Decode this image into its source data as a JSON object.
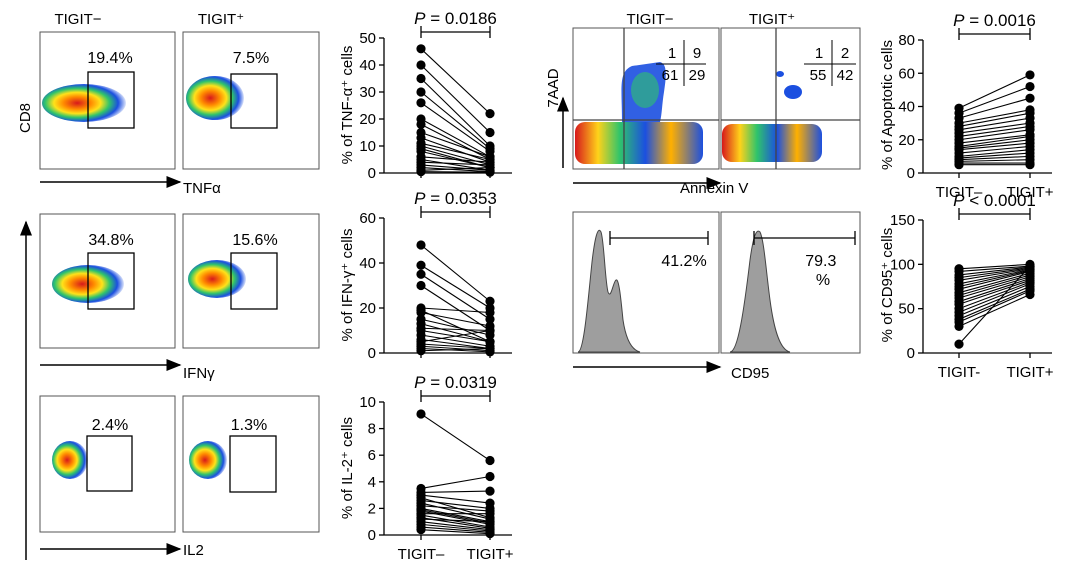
{
  "column_headers": {
    "flow_left": [
      "TIGIT−",
      "TIGIT⁺"
    ],
    "flow_right": [
      "TIGIT−",
      "TIGIT⁺"
    ]
  },
  "flow_axes": {
    "cd8_label": "CD8",
    "tnf_label": "TNFα",
    "ifn_label": "IFNγ",
    "il2_label": "IL2",
    "aad_label": "7AAD",
    "annexin_label": "Annexin V",
    "cd95_label": "CD95"
  },
  "gates": {
    "tnf": [
      "19.4%",
      "7.5%"
    ],
    "ifn": [
      "34.8%",
      "15.6%"
    ],
    "il2": [
      "2.4%",
      "1.3%"
    ],
    "cd95": [
      "41.2%",
      "79.3\n%"
    ],
    "quadrants": [
      [
        "1",
        "9",
        "61",
        "29"
      ],
      [
        "1",
        "2",
        "55",
        "42"
      ]
    ]
  },
  "colors": {
    "density_high": "#d7191c",
    "density_mid": "#ffd21a",
    "density_low": "#1b4fe0",
    "histogram_fill": "#9e9e9e"
  },
  "chart_data": [
    {
      "type": "scatter",
      "subtype": "paired",
      "stat_label": "P = 0.0186",
      "ylabel": "% of TNF-α⁺ cells",
      "ylim": [
        0,
        50
      ],
      "yticks": [
        "0",
        "10",
        "20",
        "30",
        "40",
        "50"
      ],
      "categories": [
        "",
        ""
      ],
      "pairs": [
        [
          46,
          22
        ],
        [
          40,
          15
        ],
        [
          35,
          10
        ],
        [
          30,
          9
        ],
        [
          26,
          8
        ],
        [
          20,
          6
        ],
        [
          18,
          5
        ],
        [
          15,
          6
        ],
        [
          13,
          4
        ],
        [
          11,
          5
        ],
        [
          10,
          3
        ],
        [
          9,
          2
        ],
        [
          8,
          2
        ],
        [
          6,
          4
        ],
        [
          5,
          1
        ],
        [
          4,
          3
        ],
        [
          3,
          1
        ],
        [
          2,
          0.5
        ],
        [
          1,
          2
        ],
        [
          0.5,
          0.3
        ]
      ]
    },
    {
      "type": "scatter",
      "subtype": "paired",
      "stat_label": "P = 0.0353",
      "ylabel": "% of IFN-γ⁺ cells",
      "ylim": [
        0,
        60
      ],
      "yticks": [
        "0",
        "20",
        "40",
        "60"
      ],
      "categories": [
        "",
        ""
      ],
      "pairs": [
        [
          48,
          23
        ],
        [
          39,
          20
        ],
        [
          35,
          15
        ],
        [
          30,
          10
        ],
        [
          20,
          18
        ],
        [
          19,
          5
        ],
        [
          18,
          12
        ],
        [
          15,
          8
        ],
        [
          13,
          5
        ],
        [
          11,
          10
        ],
        [
          10,
          5
        ],
        [
          8,
          3
        ],
        [
          6,
          2
        ],
        [
          5,
          10
        ],
        [
          4,
          2
        ],
        [
          3,
          1
        ],
        [
          2,
          0.5
        ],
        [
          1,
          2
        ]
      ]
    },
    {
      "type": "scatter",
      "subtype": "paired",
      "stat_label": "P = 0.0319",
      "ylabel": "% of IL-2⁺ cells",
      "ylim": [
        0,
        10
      ],
      "yticks": [
        "0",
        "2",
        "4",
        "6",
        "8",
        "10"
      ],
      "categories": [
        "TIGIT–",
        "TIGIT+"
      ],
      "pairs": [
        [
          9.1,
          5.6
        ],
        [
          3.5,
          4.4
        ],
        [
          3.2,
          3.3
        ],
        [
          3.0,
          2.4
        ],
        [
          2.8,
          1.3
        ],
        [
          2.6,
          2.0
        ],
        [
          2.4,
          1.2
        ],
        [
          2.2,
          1.8
        ],
        [
          2.0,
          1.0
        ],
        [
          1.9,
          0.9
        ],
        [
          1.8,
          0.8
        ],
        [
          1.6,
          1.6
        ],
        [
          1.5,
          0.6
        ],
        [
          1.3,
          0.5
        ],
        [
          1.2,
          1.0
        ],
        [
          1.0,
          0.4
        ],
        [
          0.8,
          0.3
        ],
        [
          0.6,
          0.2
        ],
        [
          0.4,
          0.1
        ]
      ]
    },
    {
      "type": "scatter",
      "subtype": "paired",
      "stat_label": "P = 0.0016",
      "ylabel": "% of Apoptotic cells",
      "ylim": [
        0,
        80
      ],
      "yticks": [
        "0",
        "20",
        "40",
        "60",
        "80"
      ],
      "categories": [
        "TIGIT–",
        "TIGIT+"
      ],
      "pairs": [
        [
          39,
          59
        ],
        [
          36,
          52
        ],
        [
          33,
          45
        ],
        [
          30,
          38
        ],
        [
          28,
          36
        ],
        [
          26,
          33
        ],
        [
          24,
          30
        ],
        [
          22,
          28
        ],
        [
          20,
          26
        ],
        [
          18,
          23
        ],
        [
          16,
          22
        ],
        [
          15,
          20
        ],
        [
          14,
          18
        ],
        [
          12,
          16
        ],
        [
          10,
          14
        ],
        [
          9,
          12
        ],
        [
          8,
          10
        ],
        [
          7,
          8
        ],
        [
          6,
          6
        ],
        [
          5,
          5
        ]
      ]
    },
    {
      "type": "scatter",
      "subtype": "paired",
      "stat_label": "P < 0.0001",
      "ylabel": "% of CD95⁺ cells",
      "ylim": [
        0,
        150
      ],
      "yticks": [
        "0",
        "50",
        "100",
        "150"
      ],
      "categories": [
        "TIGIT-",
        "TIGIT+"
      ],
      "pairs": [
        [
          95,
          100
        ],
        [
          92,
          98
        ],
        [
          88,
          97
        ],
        [
          85,
          96
        ],
        [
          82,
          95
        ],
        [
          78,
          94
        ],
        [
          75,
          93
        ],
        [
          72,
          92
        ],
        [
          68,
          90
        ],
        [
          65,
          88
        ],
        [
          62,
          86
        ],
        [
          58,
          84
        ],
        [
          55,
          82
        ],
        [
          50,
          80
        ],
        [
          46,
          78
        ],
        [
          42,
          75
        ],
        [
          38,
          72
        ],
        [
          35,
          70
        ],
        [
          30,
          66
        ],
        [
          10,
          98
        ]
      ]
    }
  ]
}
